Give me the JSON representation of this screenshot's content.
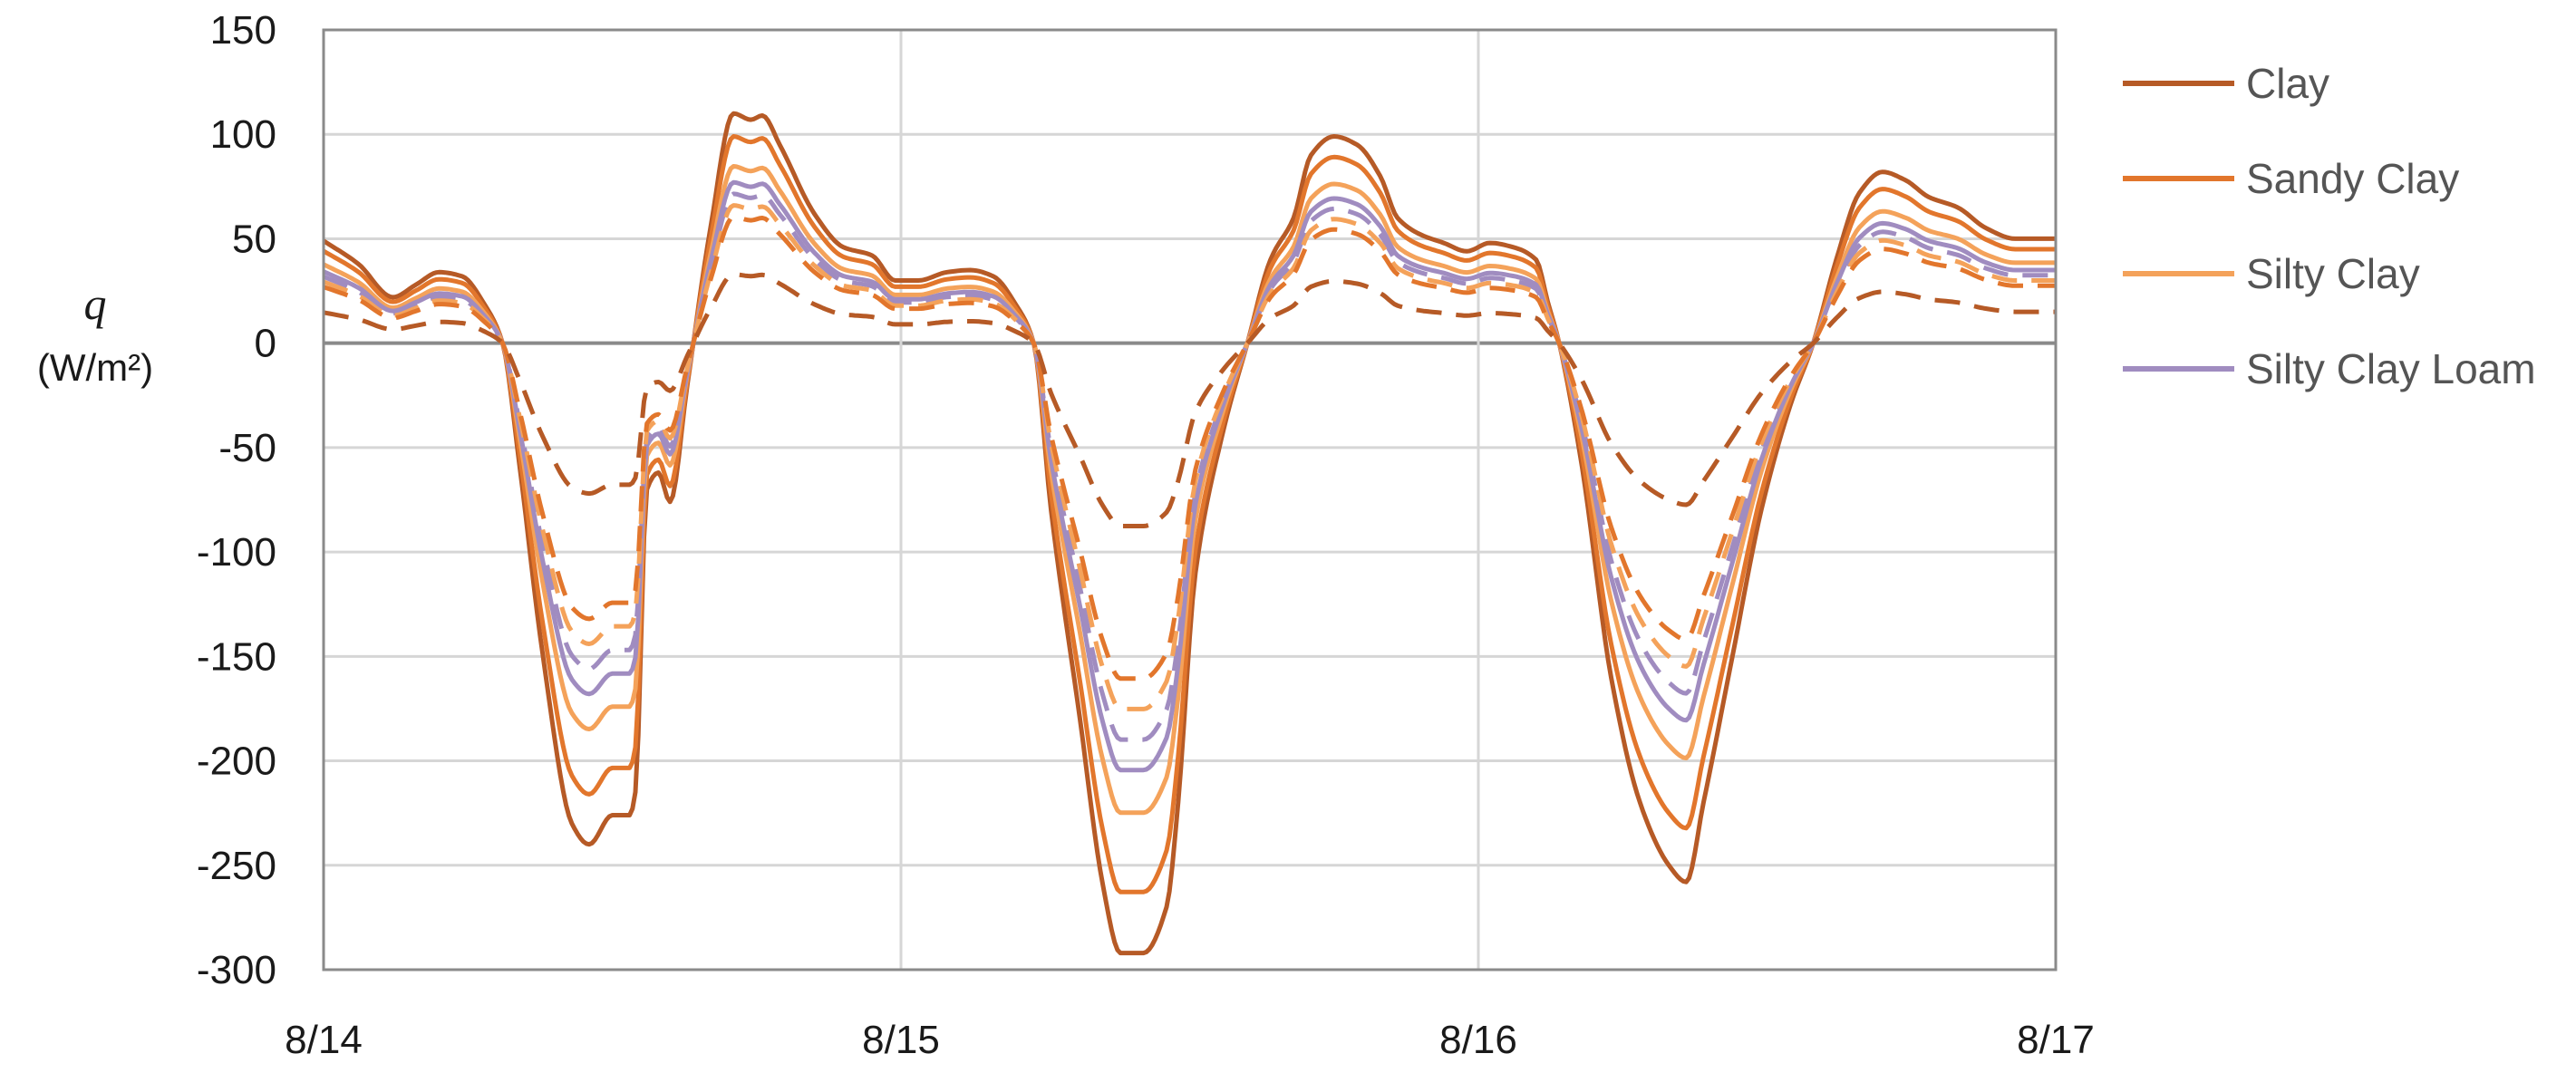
{
  "chart_data": {
    "type": "line",
    "ylabel_symbol": "q",
    "ylabel_unit": "(W/m²)",
    "xticks": [
      "8/14",
      "8/15",
      "8/16",
      "8/17"
    ],
    "xlim": [
      0,
      3
    ],
    "ylim": [
      -300,
      150
    ],
    "yticks": [
      150,
      100,
      50,
      0,
      -50,
      -100,
      -150,
      -200,
      -250,
      -300
    ],
    "grid": true,
    "legend_position": "right",
    "legend": [
      "Clay",
      "Sandy Clay",
      "Silty Clay",
      "Silty Clay Loam"
    ],
    "colors": {
      "clay": "#b65a26",
      "sandy_clay": "#e2762c",
      "silty_clay": "#f4a25a",
      "silty_clay_loam": "#a08cc0"
    },
    "series": [
      {
        "name": "Clay",
        "style": "solid",
        "color": "#b65a26",
        "amp": 1.0
      },
      {
        "name": "Sandy Clay",
        "style": "solid",
        "color": "#e2762c",
        "amp": 0.9
      },
      {
        "name": "Silty Clay",
        "style": "solid",
        "color": "#f4a25a",
        "amp": 0.77
      },
      {
        "name": "Silty Clay Loam",
        "style": "solid",
        "color": "#a08cc0",
        "amp": 0.7
      },
      {
        "style": "dashed",
        "color": "#a08cc0",
        "amp": 0.65
      },
      {
        "style": "dashed",
        "color": "#f4a25a",
        "amp": 0.6
      },
      {
        "style": "dashed",
        "color": "#e2762c",
        "amp": 0.55
      },
      {
        "style": "dashed",
        "color": "#b65a26",
        "amp": 0.3
      }
    ],
    "base_profile": [
      [
        0.0,
        49
      ],
      [
        0.06,
        38
      ],
      [
        0.12,
        22
      ],
      [
        0.16,
        28
      ],
      [
        0.2,
        34
      ],
      [
        0.24,
        32
      ],
      [
        0.28,
        18
      ],
      [
        0.31,
        0
      ],
      [
        0.34,
        -60
      ],
      [
        0.38,
        -150
      ],
      [
        0.43,
        -230
      ],
      [
        0.46,
        -240
      ],
      [
        0.5,
        -226
      ],
      [
        0.53,
        -226
      ],
      [
        0.54,
        -215
      ],
      [
        0.56,
        -70
      ],
      [
        0.58,
        -62
      ],
      [
        0.6,
        -76
      ],
      [
        0.63,
        -20
      ],
      [
        0.67,
        55
      ],
      [
        0.71,
        110
      ],
      [
        0.74,
        107
      ],
      [
        0.76,
        109
      ],
      [
        0.79,
        95
      ],
      [
        0.85,
        62
      ],
      [
        0.9,
        46
      ],
      [
        0.95,
        42
      ],
      [
        0.99,
        30
      ],
      [
        1.03,
        30
      ],
      [
        1.08,
        34
      ],
      [
        1.12,
        35
      ],
      [
        1.16,
        32
      ],
      [
        1.2,
        18
      ],
      [
        1.23,
        0
      ],
      [
        1.26,
        -80
      ],
      [
        1.31,
        -180
      ],
      [
        1.35,
        -260
      ],
      [
        1.38,
        -292
      ],
      [
        1.42,
        -292
      ],
      [
        1.46,
        -270
      ],
      [
        1.48,
        -220
      ],
      [
        1.51,
        -110
      ],
      [
        1.56,
        -40
      ],
      [
        1.6,
        0
      ],
      [
        1.64,
        40
      ],
      [
        1.68,
        60
      ],
      [
        1.71,
        90
      ],
      [
        1.75,
        99
      ],
      [
        1.79,
        95
      ],
      [
        1.83,
        80
      ],
      [
        1.86,
        60
      ],
      [
        1.9,
        52
      ],
      [
        1.94,
        48
      ],
      [
        1.98,
        44
      ],
      [
        2.02,
        48
      ],
      [
        2.06,
        46
      ],
      [
        2.1,
        40
      ],
      [
        2.12,
        20
      ],
      [
        2.14,
        0
      ],
      [
        2.18,
        -60
      ],
      [
        2.23,
        -160
      ],
      [
        2.28,
        -220
      ],
      [
        2.33,
        -250
      ],
      [
        2.36,
        -258
      ],
      [
        2.39,
        -220
      ],
      [
        2.44,
        -150
      ],
      [
        2.49,
        -80
      ],
      [
        2.54,
        -30
      ],
      [
        2.58,
        0
      ],
      [
        2.62,
        40
      ],
      [
        2.66,
        72
      ],
      [
        2.7,
        82
      ],
      [
        2.74,
        78
      ],
      [
        2.78,
        70
      ],
      [
        2.83,
        65
      ],
      [
        2.88,
        55
      ],
      [
        2.93,
        50
      ],
      [
        3.0,
        50
      ]
    ]
  }
}
